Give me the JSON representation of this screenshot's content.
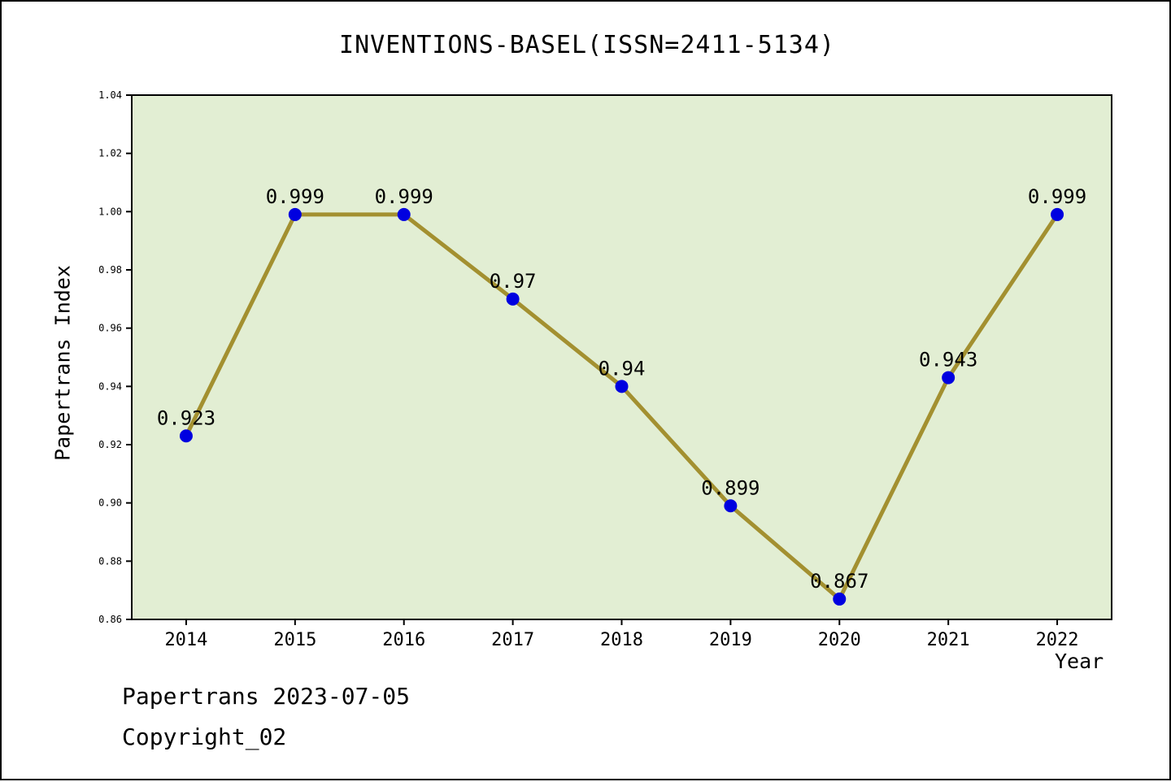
{
  "title": "INVENTIONS-BASEL(ISSN=2411-5134)",
  "footer": {
    "line1": "Papertrans 2023-07-05",
    "line2": "Copyright_02"
  },
  "chart_data": {
    "type": "line",
    "title": "INVENTIONS-BASEL(ISSN=2411-5134)",
    "xlabel": "Year",
    "ylabel": "Papertrans Index",
    "x": [
      2014,
      2015,
      2016,
      2017,
      2018,
      2019,
      2020,
      2021,
      2022
    ],
    "values": [
      0.923,
      0.999,
      0.999,
      0.97,
      0.94,
      0.899,
      0.867,
      0.943,
      0.999
    ],
    "point_labels": [
      "0.923",
      "0.999",
      "0.999",
      "0.97",
      "0.94",
      "0.899",
      "0.867",
      "0.943",
      "0.999"
    ],
    "xtick_labels": [
      "2014",
      "2015",
      "2016",
      "2017",
      "2018",
      "2019",
      "2020",
      "2021",
      "2022"
    ],
    "yticks": [
      0.86,
      0.88,
      0.9,
      0.92,
      0.94,
      0.96,
      0.98,
      1.0,
      1.02,
      1.04
    ],
    "ytick_labels": [
      "0.86",
      "0.88",
      "0.90",
      "0.92",
      "0.94",
      "0.96",
      "0.98",
      "1.00",
      "1.02",
      "1.04"
    ],
    "xlim": [
      2013.5,
      2022.5
    ],
    "ylim": [
      0.86,
      1.04
    ],
    "grid": false,
    "legend": "none",
    "colors": {
      "line": "#a39030",
      "marker": "#0000e0",
      "plot_bg": "#e2eed3",
      "axis": "#000000",
      "figure_bg": "#ffffff"
    }
  }
}
